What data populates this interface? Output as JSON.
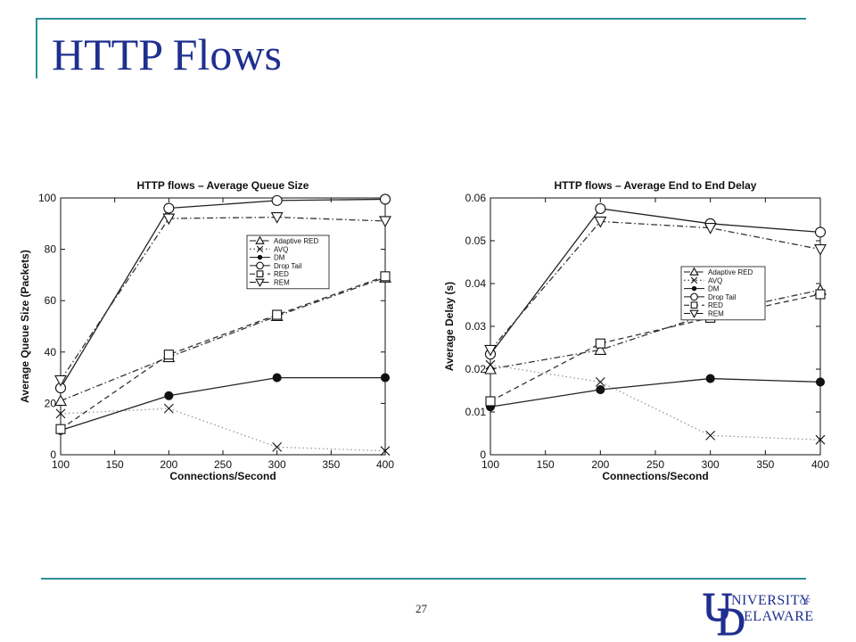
{
  "slide": {
    "title": "HTTP Flows",
    "page_number": "27",
    "logo_text": "UNIVERSITY OF DELAWARE",
    "colors": {
      "title": "#1f2f8f",
      "rule": "#2e8f95",
      "logo": "#1f2f8f"
    }
  },
  "chart_data": [
    {
      "type": "line",
      "title": "HTTP flows – Average Queue Size",
      "xlabel": "Connections/Second",
      "ylabel": "Average Queue Size (Packets)",
      "xlim": [
        100,
        400
      ],
      "ylim": [
        0,
        100
      ],
      "xticks": [
        100,
        150,
        200,
        250,
        300,
        350,
        400
      ],
      "yticks": [
        0,
        20,
        40,
        60,
        80,
        100
      ],
      "grid": false,
      "legend_position": "upper-right",
      "x": [
        100,
        200,
        300,
        400
      ],
      "series": [
        {
          "name": "Adaptive RED",
          "values": [
            21,
            38,
            54,
            69
          ],
          "marker": "triangle-up",
          "dash": "dashdot",
          "color": "#333333"
        },
        {
          "name": "AVQ",
          "values": [
            16,
            18,
            3,
            1.5
          ],
          "marker": "x",
          "dash": "dotted",
          "color": "#999999"
        },
        {
          "name": "DM",
          "values": [
            9.5,
            23,
            30,
            30
          ],
          "marker": "dot",
          "dash": "solid",
          "color": "#222222"
        },
        {
          "name": "Drop Tail",
          "values": [
            26,
            96,
            99,
            99.5
          ],
          "marker": "circle",
          "dash": "solid",
          "color": "#222222"
        },
        {
          "name": "RED",
          "values": [
            10,
            39,
            54.5,
            69.5
          ],
          "marker": "square",
          "dash": "dashed",
          "color": "#333333"
        },
        {
          "name": "REM",
          "values": [
            29,
            92,
            92.5,
            91
          ],
          "marker": "triangle-down",
          "dash": "dashdot",
          "color": "#333333"
        }
      ]
    },
    {
      "type": "line",
      "title": "HTTP flows – Average End to End Delay",
      "xlabel": "Connections/Second",
      "ylabel": "Average Delay (s)",
      "xlim": [
        100,
        400
      ],
      "ylim": [
        0,
        0.06
      ],
      "xticks": [
        100,
        150,
        200,
        250,
        300,
        350,
        400
      ],
      "yticks": [
        0,
        0.01,
        0.02,
        0.03,
        0.04,
        0.05,
        0.06
      ],
      "grid": false,
      "legend_position": "center-right",
      "x": [
        100,
        200,
        300,
        400
      ],
      "series": [
        {
          "name": "Adaptive RED",
          "values": [
            0.02,
            0.0245,
            0.033,
            0.0385
          ],
          "marker": "triangle-up",
          "dash": "dashdot",
          "color": "#333333"
        },
        {
          "name": "AVQ",
          "values": [
            0.021,
            0.017,
            0.0045,
            0.0035
          ],
          "marker": "x",
          "dash": "dotted",
          "color": "#999999"
        },
        {
          "name": "DM",
          "values": [
            0.0112,
            0.0152,
            0.0178,
            0.017
          ],
          "marker": "dot",
          "dash": "solid",
          "color": "#222222"
        },
        {
          "name": "Drop Tail",
          "values": [
            0.0235,
            0.0575,
            0.054,
            0.052
          ],
          "marker": "circle",
          "dash": "solid",
          "color": "#222222"
        },
        {
          "name": "RED",
          "values": [
            0.0125,
            0.026,
            0.032,
            0.0375
          ],
          "marker": "square",
          "dash": "dashed",
          "color": "#333333"
        },
        {
          "name": "REM",
          "values": [
            0.0245,
            0.0545,
            0.053,
            0.048
          ],
          "marker": "triangle-down",
          "dash": "dashdot",
          "color": "#333333"
        }
      ]
    }
  ]
}
